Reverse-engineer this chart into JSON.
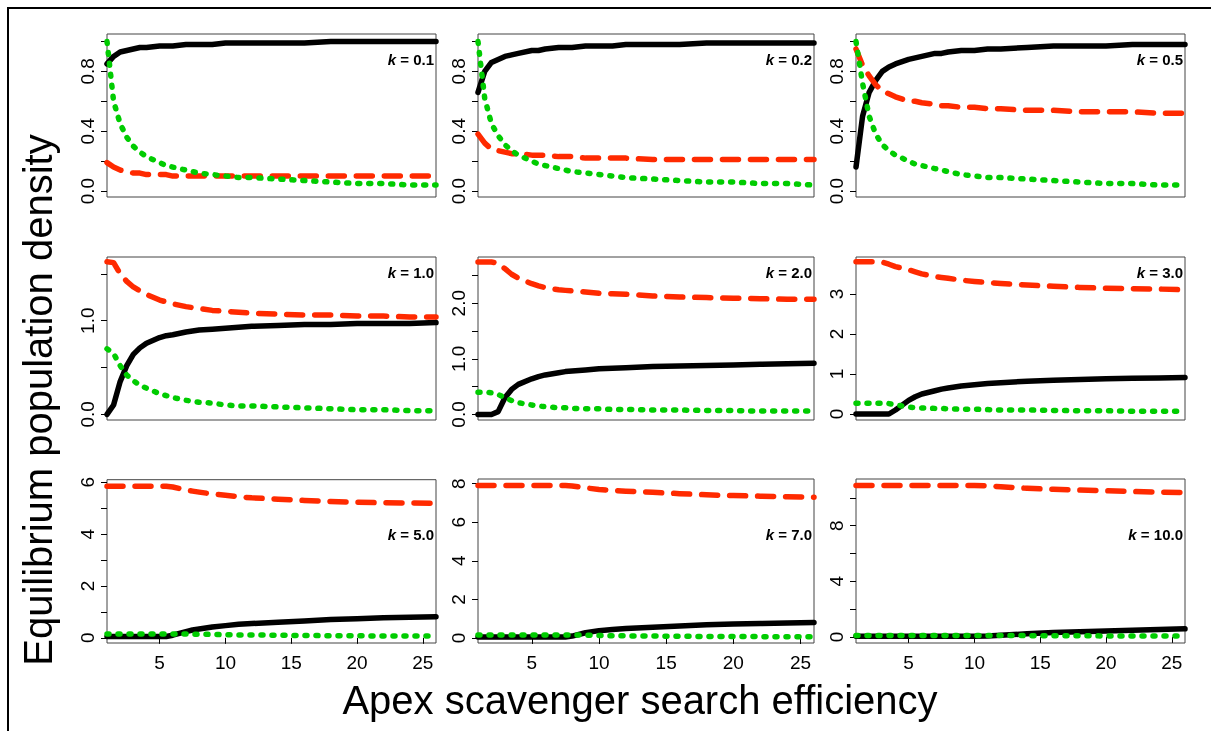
{
  "chart_data": [
    {
      "type": "line",
      "x": [
        1,
        1.5,
        2,
        2.5,
        3,
        3.5,
        4,
        5,
        5.5,
        6,
        7,
        7.5,
        8,
        9,
        10,
        11,
        12,
        14,
        16,
        18,
        20,
        22,
        24,
        26
      ],
      "xlim": [
        1,
        26
      ],
      "ylim": [
        -0.04,
        1.05
      ],
      "yticks": [
        {
          "value": 0,
          "label": "0.0"
        },
        {
          "value": 0.2,
          "label": null
        },
        {
          "value": 0.4,
          "label": "0.4"
        },
        {
          "value": 0.6,
          "label": null
        },
        {
          "value": 0.8,
          "label": "0.8"
        },
        {
          "value": 1.0,
          "label": null
        }
      ],
      "tick_labels": "y",
      "ylabel": "Equilibrium population density",
      "annotations": [
        "k = 0.1"
      ],
      "series": [
        {
          "color": "#000000",
          "line_style": "solid",
          "values": [
            0.85,
            0.9,
            0.93,
            0.94,
            0.95,
            0.96,
            0.96,
            0.97,
            0.97,
            0.97,
            0.98,
            0.98,
            0.98,
            0.98,
            0.99,
            0.99,
            0.99,
            0.99,
            0.99,
            1.0,
            1.0,
            1.0,
            1.0,
            1.0
          ]
        },
        {
          "color": "#ff2a00",
          "line_style": "dashed",
          "values": [
            0.19,
            0.16,
            0.14,
            0.13,
            0.12,
            0.12,
            0.11,
            0.11,
            0.11,
            0.1,
            0.1,
            0.1,
            0.1,
            0.1,
            0.1,
            0.1,
            0.1,
            0.1,
            0.1,
            0.1,
            0.1,
            0.1,
            0.1,
            0.1
          ]
        },
        {
          "color": "#00cc00",
          "line_style": "dotted",
          "values": [
            1.0,
            0.6,
            0.45,
            0.36,
            0.3,
            0.26,
            0.23,
            0.19,
            0.17,
            0.16,
            0.14,
            0.13,
            0.12,
            0.11,
            0.1,
            0.09,
            0.09,
            0.08,
            0.07,
            0.06,
            0.05,
            0.05,
            0.04,
            0.04
          ]
        }
      ]
    },
    {
      "type": "line",
      "x": [
        1,
        1.5,
        2,
        2.5,
        3,
        3.5,
        4,
        5,
        5.5,
        6,
        7,
        7.5,
        8,
        9,
        10,
        11,
        12,
        14,
        16,
        18,
        20,
        22,
        24,
        26
      ],
      "xlim": [
        1,
        26
      ],
      "ylim": [
        -0.04,
        1.05
      ],
      "yticks": [
        {
          "value": 0,
          "label": "0.0"
        },
        {
          "value": 0.2,
          "label": null
        },
        {
          "value": 0.4,
          "label": "0.4"
        },
        {
          "value": 0.6,
          "label": null
        },
        {
          "value": 0.8,
          "label": "0.8"
        },
        {
          "value": 1.0,
          "label": null
        }
      ],
      "tick_labels": "y",
      "annotations": [
        "k = 0.2"
      ],
      "series": [
        {
          "color": "#000000",
          "line_style": "solid",
          "values": [
            0.66,
            0.8,
            0.86,
            0.88,
            0.9,
            0.91,
            0.92,
            0.94,
            0.94,
            0.95,
            0.96,
            0.96,
            0.96,
            0.97,
            0.97,
            0.97,
            0.98,
            0.98,
            0.98,
            0.99,
            0.99,
            0.99,
            0.99,
            0.99
          ]
        },
        {
          "color": "#ff2a00",
          "line_style": "dashed",
          "values": [
            0.38,
            0.32,
            0.28,
            0.27,
            0.26,
            0.25,
            0.25,
            0.24,
            0.24,
            0.24,
            0.23,
            0.23,
            0.23,
            0.22,
            0.22,
            0.22,
            0.22,
            0.21,
            0.21,
            0.21,
            0.21,
            0.21,
            0.21,
            0.21
          ]
        },
        {
          "color": "#00cc00",
          "line_style": "dotted",
          "values": [
            1.0,
            0.62,
            0.45,
            0.37,
            0.31,
            0.27,
            0.24,
            0.2,
            0.18,
            0.17,
            0.15,
            0.14,
            0.13,
            0.12,
            0.11,
            0.1,
            0.09,
            0.08,
            0.07,
            0.06,
            0.06,
            0.05,
            0.05,
            0.04
          ]
        }
      ]
    },
    {
      "type": "line",
      "x": [
        1,
        1.5,
        2,
        2.5,
        3,
        3.5,
        4,
        5,
        5.5,
        6,
        7,
        7.5,
        8,
        9,
        10,
        11,
        12,
        14,
        16,
        18,
        20,
        22,
        24,
        26
      ],
      "xlim": [
        1,
        26
      ],
      "ylim": [
        -0.04,
        1.05
      ],
      "yticks": [
        {
          "value": 0,
          "label": "0.0"
        },
        {
          "value": 0.2,
          "label": null
        },
        {
          "value": 0.4,
          "label": "0.4"
        },
        {
          "value": 0.6,
          "label": null
        },
        {
          "value": 0.8,
          "label": "0.8"
        },
        {
          "value": 1.0,
          "label": null
        }
      ],
      "tick_labels": "y",
      "annotations": [
        "k = 0.5"
      ],
      "series": [
        {
          "color": "#000000",
          "line_style": "solid",
          "values": [
            0.16,
            0.5,
            0.66,
            0.74,
            0.8,
            0.83,
            0.85,
            0.88,
            0.89,
            0.9,
            0.92,
            0.92,
            0.93,
            0.94,
            0.94,
            0.95,
            0.95,
            0.96,
            0.97,
            0.97,
            0.97,
            0.98,
            0.98,
            0.98
          ]
        },
        {
          "color": "#ff2a00",
          "line_style": "dashed",
          "values": [
            0.95,
            0.84,
            0.77,
            0.71,
            0.67,
            0.65,
            0.63,
            0.6,
            0.6,
            0.59,
            0.58,
            0.57,
            0.57,
            0.56,
            0.56,
            0.55,
            0.55,
            0.54,
            0.54,
            0.53,
            0.53,
            0.53,
            0.52,
            0.52
          ]
        },
        {
          "color": "#00cc00",
          "line_style": "dotted",
          "values": [
            1.0,
            0.72,
            0.5,
            0.38,
            0.31,
            0.27,
            0.24,
            0.2,
            0.18,
            0.17,
            0.15,
            0.14,
            0.13,
            0.11,
            0.1,
            0.09,
            0.09,
            0.08,
            0.07,
            0.06,
            0.05,
            0.05,
            0.04,
            0.04
          ]
        }
      ]
    },
    {
      "type": "line",
      "x": [
        1,
        1.5,
        2,
        2.5,
        3,
        3.5,
        4,
        5,
        5.5,
        6,
        7,
        7.5,
        8,
        9,
        10,
        11,
        12,
        14,
        16,
        18,
        20,
        22,
        24,
        26
      ],
      "xlim": [
        1,
        26
      ],
      "ylim": [
        -0.06,
        1.68
      ],
      "yticks": [
        {
          "value": 0,
          "label": "0.0"
        },
        {
          "value": 0.5,
          "label": null
        },
        {
          "value": 1.0,
          "label": "1.0"
        },
        {
          "value": 1.5,
          "label": null
        }
      ],
      "tick_labels": "y",
      "annotations": [
        "k = 1.0"
      ],
      "series": [
        {
          "color": "#000000",
          "line_style": "solid",
          "values": [
            0,
            0.1,
            0.35,
            0.52,
            0.64,
            0.71,
            0.76,
            0.82,
            0.84,
            0.85,
            0.88,
            0.89,
            0.9,
            0.91,
            0.92,
            0.93,
            0.94,
            0.95,
            0.96,
            0.96,
            0.97,
            0.97,
            0.97,
            0.98
          ]
        },
        {
          "color": "#ff2a00",
          "line_style": "dashed",
          "values": [
            1.63,
            1.62,
            1.5,
            1.42,
            1.36,
            1.32,
            1.28,
            1.22,
            1.2,
            1.18,
            1.15,
            1.14,
            1.13,
            1.11,
            1.1,
            1.09,
            1.08,
            1.07,
            1.06,
            1.06,
            1.05,
            1.05,
            1.04,
            1.04
          ]
        },
        {
          "color": "#00cc00",
          "line_style": "dotted",
          "values": [
            0.7,
            0.65,
            0.52,
            0.42,
            0.36,
            0.31,
            0.28,
            0.22,
            0.2,
            0.18,
            0.15,
            0.14,
            0.13,
            0.12,
            0.1,
            0.09,
            0.09,
            0.08,
            0.07,
            0.06,
            0.05,
            0.05,
            0.04,
            0.04
          ]
        }
      ]
    },
    {
      "type": "line",
      "x": [
        1,
        1.5,
        2,
        2.5,
        3,
        3.5,
        4,
        5,
        5.5,
        6,
        7,
        7.5,
        8,
        9,
        10,
        11,
        12,
        14,
        16,
        18,
        20,
        22,
        24,
        26
      ],
      "xlim": [
        1,
        26
      ],
      "ylim": [
        -0.1,
        2.83
      ],
      "yticks": [
        {
          "value": 0,
          "label": "0.0"
        },
        {
          "value": 0.5,
          "label": null
        },
        {
          "value": 1.0,
          "label": "1.0"
        },
        {
          "value": 1.5,
          "label": null
        },
        {
          "value": 2.0,
          "label": "2.0"
        },
        {
          "value": 2.5,
          "label": null
        }
      ],
      "tick_labels": "y",
      "annotations": [
        "k = 2.0"
      ],
      "series": [
        {
          "color": "#000000",
          "line_style": "solid",
          "values": [
            0,
            0,
            0,
            0.05,
            0.3,
            0.45,
            0.54,
            0.64,
            0.68,
            0.71,
            0.75,
            0.77,
            0.78,
            0.8,
            0.82,
            0.83,
            0.84,
            0.86,
            0.87,
            0.88,
            0.89,
            0.9,
            0.91,
            0.92
          ]
        },
        {
          "color": "#ff2a00",
          "line_style": "dashed",
          "values": [
            2.74,
            2.74,
            2.74,
            2.72,
            2.62,
            2.52,
            2.45,
            2.35,
            2.31,
            2.28,
            2.24,
            2.23,
            2.22,
            2.2,
            2.18,
            2.17,
            2.16,
            2.13,
            2.11,
            2.1,
            2.09,
            2.08,
            2.07,
            2.07
          ]
        },
        {
          "color": "#00cc00",
          "line_style": "dotted",
          "values": [
            0.4,
            0.4,
            0.39,
            0.36,
            0.3,
            0.25,
            0.21,
            0.17,
            0.15,
            0.14,
            0.12,
            0.12,
            0.11,
            0.1,
            0.1,
            0.09,
            0.09,
            0.08,
            0.08,
            0.07,
            0.07,
            0.06,
            0.06,
            0.06
          ]
        }
      ]
    },
    {
      "type": "line",
      "x": [
        1,
        1.5,
        2,
        2.5,
        3,
        3.5,
        4,
        5,
        5.5,
        6,
        7,
        7.5,
        8,
        9,
        10,
        11,
        12,
        14,
        16,
        18,
        20,
        22,
        24,
        26
      ],
      "xlim": [
        1,
        26
      ],
      "ylim": [
        -0.15,
        3.92
      ],
      "yticks": [
        0,
        1,
        2,
        3
      ],
      "tick_labels": "y",
      "annotations": [
        "k = 3.0"
      ],
      "series": [
        {
          "color": "#000000",
          "line_style": "solid",
          "values": [
            0,
            0,
            0,
            0,
            0,
            0,
            0.1,
            0.34,
            0.43,
            0.5,
            0.58,
            0.62,
            0.65,
            0.7,
            0.73,
            0.76,
            0.78,
            0.82,
            0.84,
            0.86,
            0.88,
            0.89,
            0.9,
            0.91
          ]
        },
        {
          "color": "#ff2a00",
          "line_style": "dashed",
          "values": [
            3.8,
            3.8,
            3.8,
            3.8,
            3.79,
            3.74,
            3.68,
            3.6,
            3.55,
            3.5,
            3.43,
            3.41,
            3.39,
            3.34,
            3.31,
            3.28,
            3.26,
            3.22,
            3.19,
            3.16,
            3.14,
            3.13,
            3.12,
            3.1
          ]
        },
        {
          "color": "#00cc00",
          "line_style": "dotted",
          "values": [
            0.27,
            0.27,
            0.27,
            0.27,
            0.27,
            0.26,
            0.23,
            0.17,
            0.16,
            0.15,
            0.14,
            0.14,
            0.13,
            0.12,
            0.12,
            0.11,
            0.1,
            0.1,
            0.09,
            0.08,
            0.08,
            0.07,
            0.07,
            0.07
          ]
        }
      ]
    },
    {
      "type": "line",
      "x": [
        1,
        1.5,
        2,
        2.5,
        3,
        3.5,
        4,
        5,
        5.5,
        6,
        7,
        7.5,
        8,
        9,
        10,
        11,
        12,
        14,
        16,
        18,
        20,
        22,
        24,
        26
      ],
      "xlim": [
        1,
        26
      ],
      "xticks": [
        5,
        10,
        15,
        20,
        25
      ],
      "ylim": [
        -0.2,
        6.1
      ],
      "yticks": [
        0,
        {
          "value": 1,
          "label": null
        },
        2,
        {
          "value": 3,
          "label": null
        },
        4,
        {
          "value": 5,
          "label": null
        },
        6
      ],
      "annotations": [
        "k = 5.0"
      ],
      "series": [
        {
          "color": "#000000",
          "line_style": "solid",
          "values": [
            0.05,
            0.05,
            0.05,
            0.05,
            0.05,
            0.05,
            0.05,
            0.05,
            0.05,
            0.1,
            0.24,
            0.3,
            0.34,
            0.42,
            0.47,
            0.52,
            0.55,
            0.6,
            0.65,
            0.71,
            0.74,
            0.77,
            0.79,
            0.81
          ]
        },
        {
          "color": "#ff2a00",
          "line_style": "dashed",
          "values": [
            5.85,
            5.85,
            5.85,
            5.85,
            5.85,
            5.85,
            5.85,
            5.85,
            5.85,
            5.82,
            5.7,
            5.66,
            5.62,
            5.55,
            5.5,
            5.44,
            5.4,
            5.35,
            5.3,
            5.26,
            5.23,
            5.21,
            5.2,
            5.19
          ]
        },
        {
          "color": "#00cc00",
          "line_style": "dotted",
          "values": [
            0.15,
            0.15,
            0.15,
            0.15,
            0.15,
            0.15,
            0.15,
            0.15,
            0.15,
            0.15,
            0.15,
            0.14,
            0.14,
            0.13,
            0.12,
            0.11,
            0.11,
            0.1,
            0.09,
            0.08,
            0.08,
            0.07,
            0.07,
            0.07
          ]
        }
      ]
    },
    {
      "type": "line",
      "x": [
        1,
        1.5,
        2,
        2.5,
        3,
        3.5,
        4,
        5,
        5.5,
        6,
        7,
        7.5,
        8,
        9,
        10,
        11,
        12,
        14,
        16,
        18,
        20,
        22,
        24,
        26
      ],
      "xlim": [
        1,
        26
      ],
      "xticks": [
        5,
        10,
        15,
        20,
        25
      ],
      "ylim": [
        -0.26,
        8.24
      ],
      "yticks": [
        0,
        2,
        4,
        6,
        8
      ],
      "xlabel": "Apex scavenger search efficiency",
      "annotations": [
        "k = 7.0"
      ],
      "series": [
        {
          "color": "#000000",
          "line_style": "solid",
          "values": [
            0.05,
            0.05,
            0.05,
            0.05,
            0.05,
            0.05,
            0.05,
            0.05,
            0.05,
            0.05,
            0.05,
            0.05,
            0.1,
            0.27,
            0.38,
            0.44,
            0.49,
            0.56,
            0.62,
            0.68,
            0.72,
            0.75,
            0.78,
            0.8
          ]
        },
        {
          "color": "#ff2a00",
          "line_style": "dashed",
          "values": [
            7.9,
            7.9,
            7.9,
            7.9,
            7.9,
            7.9,
            7.9,
            7.9,
            7.9,
            7.9,
            7.9,
            7.9,
            7.88,
            7.78,
            7.7,
            7.65,
            7.61,
            7.55,
            7.48,
            7.42,
            7.38,
            7.35,
            7.32,
            7.3
          ]
        },
        {
          "color": "#00cc00",
          "line_style": "dotted",
          "values": [
            0.15,
            0.15,
            0.15,
            0.15,
            0.15,
            0.15,
            0.15,
            0.15,
            0.15,
            0.15,
            0.15,
            0.15,
            0.15,
            0.15,
            0.13,
            0.12,
            0.11,
            0.1,
            0.09,
            0.08,
            0.08,
            0.07,
            0.07,
            0.07
          ]
        }
      ]
    },
    {
      "type": "line",
      "x": [
        1,
        1.5,
        2,
        2.5,
        3,
        3.5,
        4,
        5,
        5.5,
        6,
        7,
        7.5,
        8,
        9,
        10,
        11,
        12,
        14,
        16,
        18,
        20,
        22,
        24,
        26
      ],
      "xlim": [
        1,
        26
      ],
      "xticks": [
        5,
        10,
        15,
        20,
        25
      ],
      "ylim": [
        -0.44,
        11.36
      ],
      "yticks": [
        0,
        {
          "value": 2,
          "label": null
        },
        4,
        {
          "value": 6,
          "label": null
        },
        8,
        {
          "value": 10,
          "label": null
        }
      ],
      "annotations": [
        "k = 10.0"
      ],
      "series": [
        {
          "color": "#000000",
          "line_style": "solid",
          "values": [
            0.05,
            0.05,
            0.05,
            0.05,
            0.05,
            0.05,
            0.05,
            0.05,
            0.05,
            0.05,
            0.05,
            0.05,
            0.05,
            0.05,
            0.05,
            0.07,
            0.12,
            0.22,
            0.31,
            0.37,
            0.43,
            0.48,
            0.53,
            0.58
          ]
        },
        {
          "color": "#ff2a00",
          "line_style": "dashed",
          "values": [
            10.9,
            10.9,
            10.9,
            10.9,
            10.9,
            10.9,
            10.9,
            10.9,
            10.9,
            10.9,
            10.9,
            10.9,
            10.9,
            10.9,
            10.9,
            10.87,
            10.8,
            10.69,
            10.62,
            10.56,
            10.51,
            10.46,
            10.42,
            10.39
          ]
        },
        {
          "color": "#00cc00",
          "line_style": "dotted",
          "values": [
            0.1,
            0.1,
            0.1,
            0.1,
            0.1,
            0.1,
            0.1,
            0.1,
            0.1,
            0.1,
            0.1,
            0.1,
            0.1,
            0.1,
            0.1,
            0.1,
            0.1,
            0.09,
            0.08,
            0.08,
            0.07,
            0.07,
            0.06,
            0.06
          ]
        }
      ]
    }
  ]
}
